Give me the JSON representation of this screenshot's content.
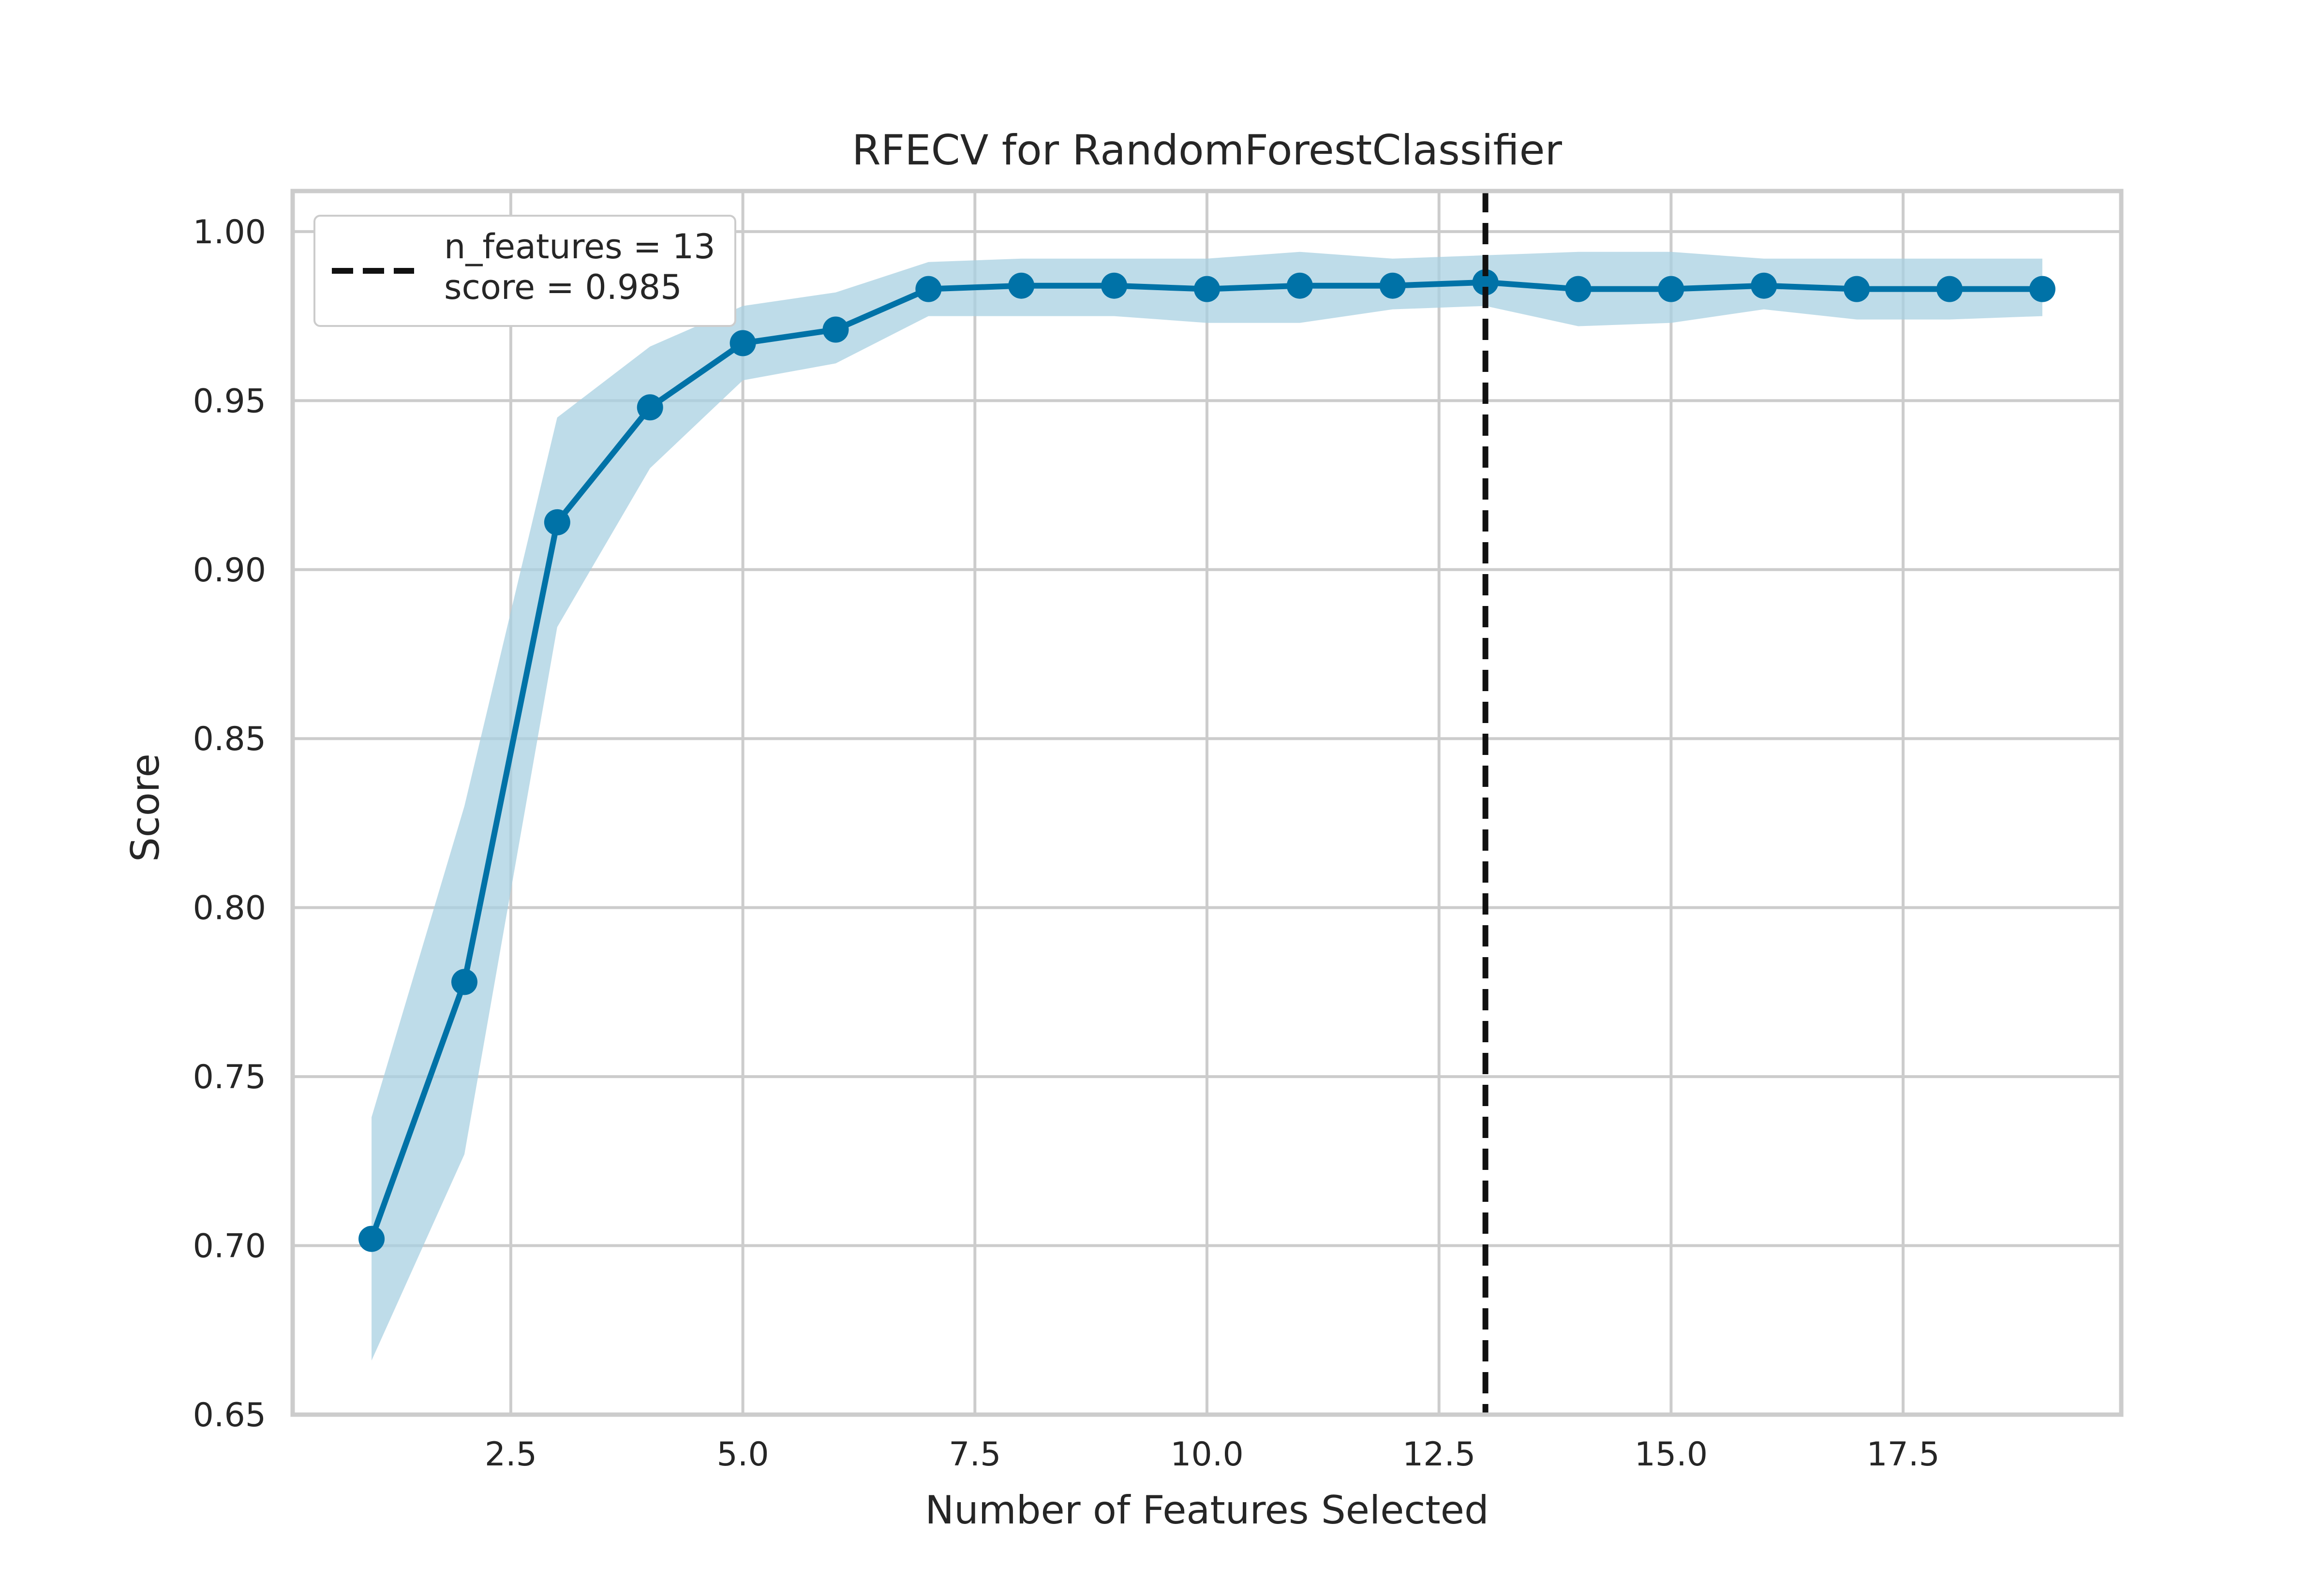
{
  "chart_data": {
    "type": "line",
    "title": "RFECV for RandomForestClassifier",
    "xlabel": "Number of Features Selected",
    "ylabel": "Score",
    "xlim": [
      0.15,
      19.85
    ],
    "ylim": [
      0.65,
      1.012
    ],
    "xticks": [
      2.5,
      5.0,
      7.5,
      10.0,
      12.5,
      15.0,
      17.5
    ],
    "xtick_labels": [
      "2.5",
      "5.0",
      "7.5",
      "10.0",
      "12.5",
      "15.0",
      "17.5"
    ],
    "yticks": [
      0.65,
      0.7,
      0.75,
      0.8,
      0.85,
      0.9,
      0.95,
      1.0
    ],
    "ytick_labels": [
      "0.65",
      "0.70",
      "0.75",
      "0.80",
      "0.85",
      "0.90",
      "0.95",
      "1.00"
    ],
    "grid": true,
    "legend_position": "top-left",
    "colors": {
      "line": "#0072a7",
      "band": "#a8d0e2",
      "grid": "#cccccc",
      "vline": "#111111",
      "text": "#262626"
    },
    "series": [
      {
        "x": [
          1,
          2,
          3,
          4,
          5,
          6,
          7,
          8,
          9,
          10,
          11,
          12,
          13,
          14,
          15,
          16,
          17,
          18,
          19
        ],
        "values": [
          0.702,
          0.778,
          0.914,
          0.948,
          0.967,
          0.971,
          0.983,
          0.984,
          0.984,
          0.983,
          0.984,
          0.984,
          0.985,
          0.983,
          0.983,
          0.984,
          0.983,
          0.983,
          0.983
        ],
        "lower": [
          0.666,
          0.727,
          0.883,
          0.93,
          0.956,
          0.961,
          0.975,
          0.975,
          0.975,
          0.973,
          0.973,
          0.977,
          0.978,
          0.972,
          0.973,
          0.977,
          0.974,
          0.974,
          0.975
        ],
        "upper": [
          0.738,
          0.83,
          0.945,
          0.966,
          0.978,
          0.982,
          0.991,
          0.992,
          0.992,
          0.992,
          0.994,
          0.992,
          0.993,
          0.994,
          0.994,
          0.992,
          0.992,
          0.992,
          0.992
        ]
      }
    ],
    "vline": {
      "x": 13
    },
    "legend": {
      "line1": "n_features = 13",
      "line2": "score = 0.985"
    }
  }
}
